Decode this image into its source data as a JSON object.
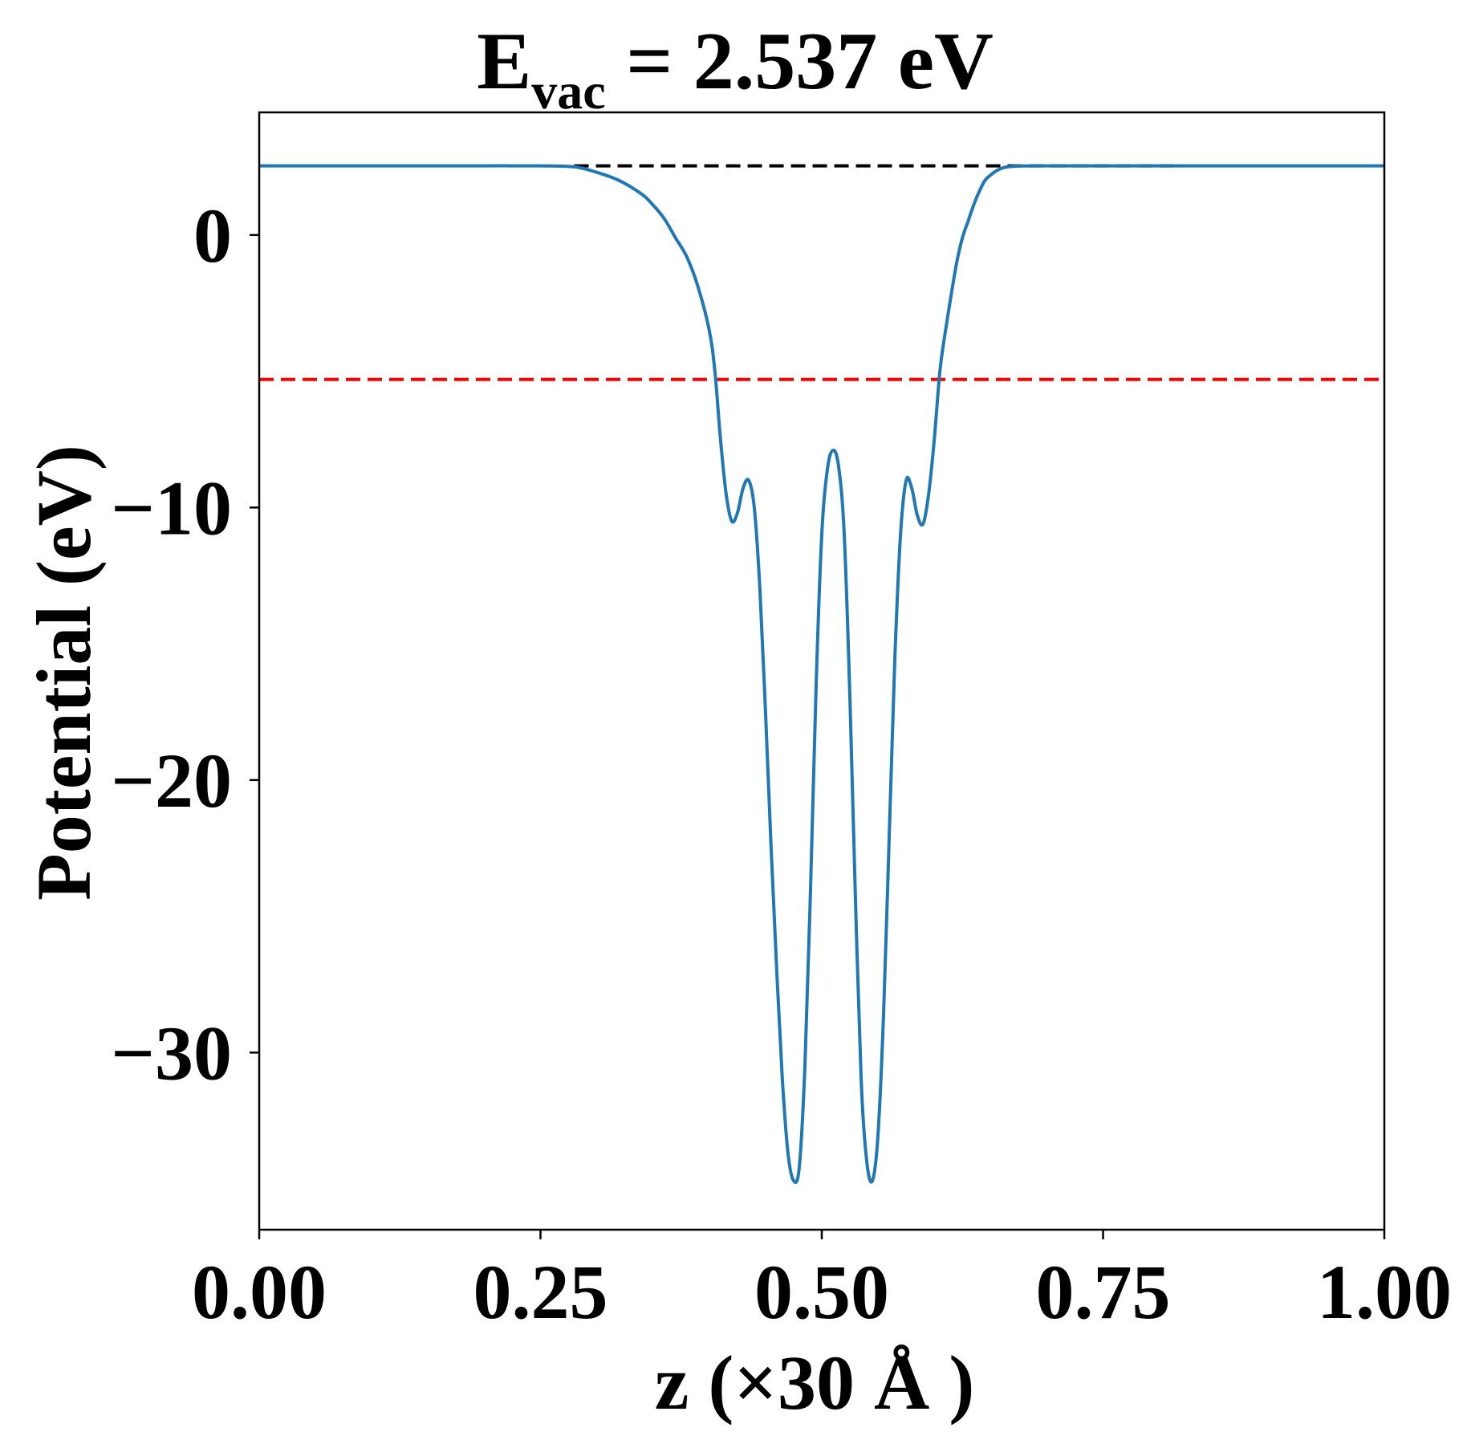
{
  "chart_data": {
    "type": "line",
    "title": {
      "main": "E",
      "subscript": "vac",
      "rest": " = 2.537 eV"
    },
    "xlabel": "z (×30 Å )",
    "ylabel": "Potential (eV)",
    "xlim": [
      0.0,
      1.0
    ],
    "ylim": [
      -36.5,
      4.5
    ],
    "x_ticks": [
      0.0,
      0.25,
      0.5,
      0.75,
      1.0
    ],
    "x_tick_labels": [
      "0.00",
      "0.25",
      "0.50",
      "0.75",
      "1.00"
    ],
    "y_ticks": [
      0,
      -10,
      -20,
      -30
    ],
    "y_tick_labels": [
      "0",
      "−10",
      "−20",
      "−30"
    ],
    "grid": false,
    "reference_lines": [
      {
        "y": 2.537,
        "style": "dashed",
        "color": "#000000",
        "x_range": [
          0.28,
          0.82
        ]
      },
      {
        "y": -5.3,
        "style": "dashed",
        "color": "#ff0000",
        "x_range": [
          0.0,
          1.0
        ]
      }
    ],
    "series": [
      {
        "color": "#1f77b4",
        "x": [
          0.0,
          0.05,
          0.1,
          0.15,
          0.2,
          0.25,
          0.28,
          0.3,
          0.32,
          0.34,
          0.35,
          0.36,
          0.37,
          0.38,
          0.39,
          0.4,
          0.405,
          0.41,
          0.415,
          0.42,
          0.425,
          0.43,
          0.435,
          0.44,
          0.445,
          0.45,
          0.455,
          0.46,
          0.465,
          0.47,
          0.475,
          0.48,
          0.485,
          0.49,
          0.495,
          0.5,
          0.505,
          0.51,
          0.515,
          0.52,
          0.525,
          0.53,
          0.535,
          0.54,
          0.545,
          0.55,
          0.555,
          0.56,
          0.565,
          0.57,
          0.575,
          0.58,
          0.585,
          0.59,
          0.595,
          0.6,
          0.605,
          0.61,
          0.615,
          0.62,
          0.625,
          0.63,
          0.635,
          0.64,
          0.645,
          0.65,
          0.655,
          0.66,
          0.665,
          0.67,
          0.675,
          0.68,
          0.685,
          0.69,
          0.7,
          0.71,
          0.72,
          0.73,
          0.74,
          0.75,
          0.77,
          0.8,
          0.85,
          0.9,
          0.95,
          1.0
        ],
        "y": [
          2.537,
          2.537,
          2.537,
          2.537,
          2.537,
          2.537,
          2.5,
          2.3,
          2.0,
          1.5,
          1.1,
          0.6,
          -0.1,
          -0.8,
          -1.9,
          -3.5,
          -5.0,
          -7.5,
          -9.5,
          -10.5,
          -10.2,
          -9.3,
          -9.0,
          -10.0,
          -13.0,
          -17.5,
          -22.5,
          -27.0,
          -31.0,
          -33.7,
          -34.7,
          -34.2,
          -30.5,
          -24.0,
          -16.5,
          -11.0,
          -8.6,
          -7.9,
          -8.5,
          -11.0,
          -17.0,
          -24.5,
          -31.0,
          -34.0,
          -34.7,
          -33.0,
          -28.5,
          -22.0,
          -15.5,
          -11.0,
          -9.0,
          -9.3,
          -10.3,
          -10.6,
          -9.5,
          -7.5,
          -5.0,
          -3.5,
          -2.2,
          -1.0,
          -0.1,
          0.5,
          1.1,
          1.6,
          2.0,
          2.2,
          2.35,
          2.45,
          2.5,
          2.52,
          2.53,
          2.535,
          2.537,
          2.537,
          2.537,
          2.537,
          2.537,
          2.537,
          2.537,
          2.537,
          2.537,
          2.537,
          2.537,
          2.537,
          2.537,
          2.537
        ]
      }
    ]
  }
}
